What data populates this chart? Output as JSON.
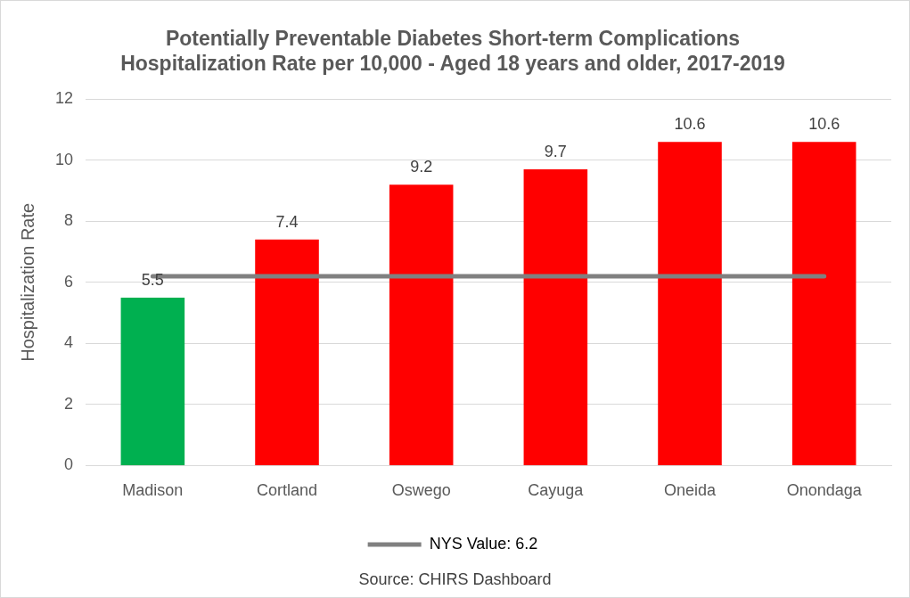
{
  "chart_data": {
    "type": "bar",
    "title": "Potentially Preventable Diabetes Short-term Complications Hospitalization Rate per 10,000 - Aged 18 years and older, 2017-2019",
    "ylabel": "Hospitalization Rate",
    "categories": [
      "Madison",
      "Cortland",
      "Oswego",
      "Cayuga",
      "Oneida",
      "Onondaga"
    ],
    "series": [
      {
        "colors": [
          "#00b050",
          "#ff0000",
          "#ff0000",
          "#ff0000",
          "#ff0000",
          "#ff0000"
        ],
        "values": [
          5.5,
          7.4,
          9.2,
          9.7,
          10.6,
          10.6
        ],
        "value_labels": [
          "5.5",
          "7.4",
          "9.2",
          "9.7",
          "10.6",
          "10.6"
        ]
      },
      {
        "type": "line",
        "name": "NYS Value: 6.2",
        "color": "#808080",
        "values": [
          6.2,
          6.2,
          6.2,
          6.2,
          6.2,
          6.2
        ],
        "marker": "none"
      }
    ],
    "ylim": [
      0,
      12
    ],
    "yticks": [
      0,
      2,
      4,
      6,
      8,
      10,
      12
    ],
    "grid": "y",
    "legend": "bottom",
    "annotations": [
      "Source: CHIRS Dashboard"
    ]
  }
}
